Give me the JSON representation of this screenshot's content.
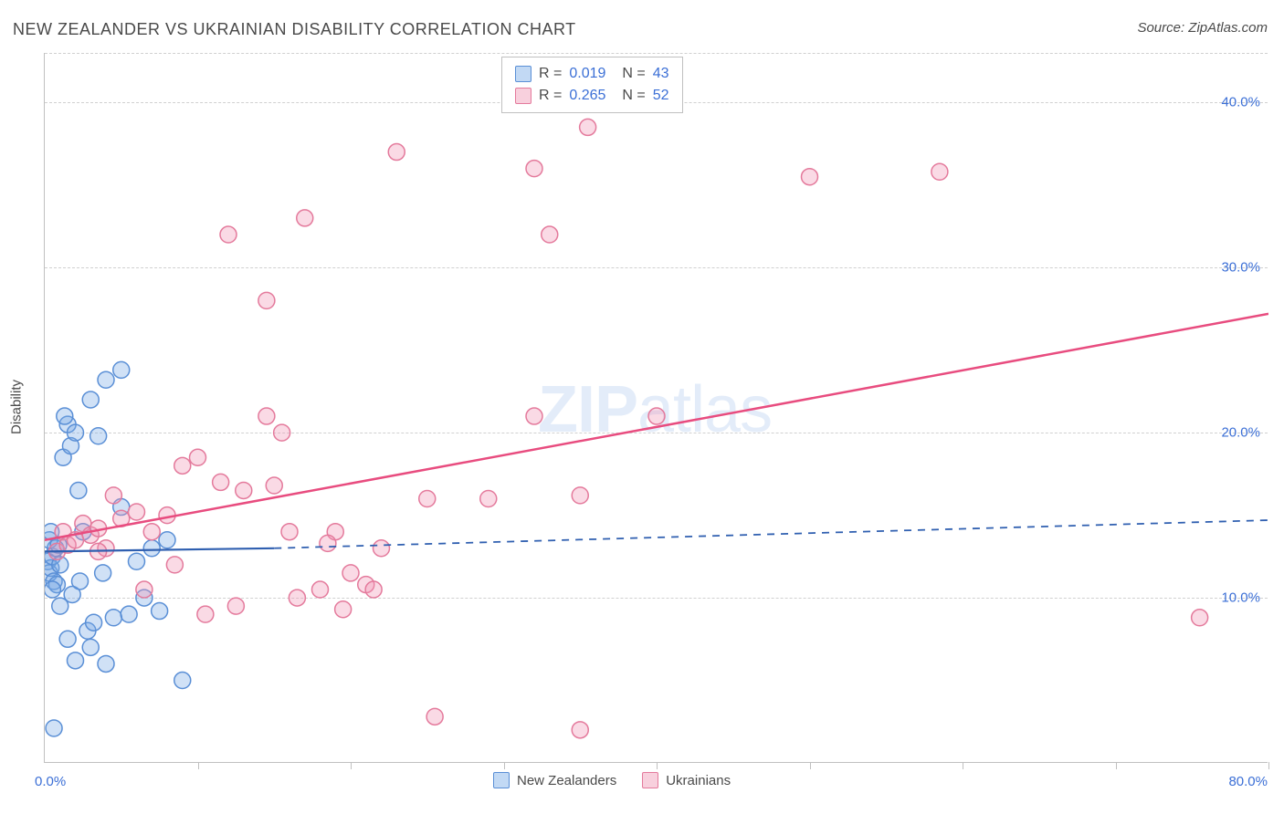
{
  "title": "NEW ZEALANDER VS UKRAINIAN DISABILITY CORRELATION CHART",
  "source": "Source: ZipAtlas.com",
  "y_axis_label": "Disability",
  "watermark_bold": "ZIP",
  "watermark_rest": "atlas",
  "chart": {
    "type": "scatter",
    "xlim": [
      0,
      80
    ],
    "ylim": [
      0,
      43
    ],
    "x_ticks": [
      0,
      10,
      20,
      30,
      40,
      50,
      60,
      70,
      80
    ],
    "x_tick_labels": {
      "0": "0.0%",
      "80": "80.0%"
    },
    "y_gridlines": [
      10,
      20,
      30,
      40,
      43
    ],
    "y_tick_labels": {
      "10": "10.0%",
      "20": "20.0%",
      "30": "30.0%",
      "40": "40.0%"
    },
    "background_color": "#ffffff",
    "grid_color": "#d0d0d0",
    "axis_color": "#c0c0c0",
    "tick_label_color": "#3b6fd6",
    "marker_radius": 9,
    "marker_stroke_width": 1.5,
    "series": [
      {
        "name": "New Zealanders",
        "fill": "rgba(120,170,230,0.35)",
        "stroke": "#5a8fd6",
        "trend": {
          "x1": 0,
          "y1": 12.8,
          "x2": 15,
          "y2": 13.0,
          "x2_dash": 80,
          "y2_dash": 14.7,
          "color": "#2f5fb0",
          "width": 2.2
        },
        "points": [
          [
            0.2,
            12.2
          ],
          [
            0.3,
            11.5
          ],
          [
            0.4,
            11.8
          ],
          [
            0.5,
            12.5
          ],
          [
            0.6,
            11.0
          ],
          [
            0.7,
            13.0
          ],
          [
            0.8,
            10.8
          ],
          [
            0.5,
            10.5
          ],
          [
            1.0,
            12.0
          ],
          [
            1.2,
            18.5
          ],
          [
            1.5,
            20.5
          ],
          [
            1.3,
            21.0
          ],
          [
            1.7,
            19.2
          ],
          [
            2.0,
            20.0
          ],
          [
            2.2,
            16.5
          ],
          [
            2.5,
            14.0
          ],
          [
            3.0,
            22.0
          ],
          [
            3.5,
            19.8
          ],
          [
            4.0,
            23.2
          ],
          [
            5.0,
            23.8
          ],
          [
            6.0,
            12.2
          ],
          [
            6.5,
            10.0
          ],
          [
            7.0,
            13.0
          ],
          [
            8.0,
            13.5
          ],
          [
            2.8,
            8.0
          ],
          [
            3.2,
            8.5
          ],
          [
            4.5,
            8.8
          ],
          [
            5.5,
            9.0
          ],
          [
            3.0,
            7.0
          ],
          [
            2.0,
            6.2
          ],
          [
            1.5,
            7.5
          ],
          [
            4.0,
            6.0
          ],
          [
            0.6,
            2.1
          ],
          [
            1.0,
            9.5
          ],
          [
            1.8,
            10.2
          ],
          [
            2.3,
            11.0
          ],
          [
            3.8,
            11.5
          ],
          [
            5.0,
            15.5
          ],
          [
            7.5,
            9.2
          ],
          [
            9.0,
            5.0
          ],
          [
            0.3,
            13.5
          ],
          [
            0.4,
            14.0
          ],
          [
            0.9,
            13.2
          ]
        ]
      },
      {
        "name": "Ukrainians",
        "fill": "rgba(240,150,180,0.35)",
        "stroke": "#e47a9c",
        "trend": {
          "x1": 0,
          "y1": 13.5,
          "x2": 80,
          "y2": 27.2,
          "color": "#e84c7f",
          "width": 2.5
        },
        "points": [
          [
            0.8,
            12.8
          ],
          [
            1.2,
            14.0
          ],
          [
            1.5,
            13.2
          ],
          [
            2.0,
            13.5
          ],
          [
            2.5,
            14.5
          ],
          [
            3.0,
            13.8
          ],
          [
            3.5,
            14.2
          ],
          [
            4.0,
            13.0
          ],
          [
            5.0,
            14.8
          ],
          [
            6.0,
            15.2
          ],
          [
            7.0,
            14.0
          ],
          [
            8.0,
            15.0
          ],
          [
            9.0,
            18.0
          ],
          [
            10.0,
            18.5
          ],
          [
            11.5,
            17.0
          ],
          [
            13.0,
            16.5
          ],
          [
            14.5,
            21.0
          ],
          [
            15.0,
            16.8
          ],
          [
            15.5,
            20.0
          ],
          [
            16.0,
            14.0
          ],
          [
            16.5,
            10.0
          ],
          [
            18.0,
            10.5
          ],
          [
            19.0,
            14.0
          ],
          [
            20.0,
            11.5
          ],
          [
            21.0,
            10.8
          ],
          [
            21.5,
            10.5
          ],
          [
            25.0,
            16.0
          ],
          [
            29.0,
            16.0
          ],
          [
            32.0,
            21.0
          ],
          [
            35.0,
            16.2
          ],
          [
            40.0,
            21.0
          ],
          [
            12.0,
            32.0
          ],
          [
            17.0,
            33.0
          ],
          [
            14.5,
            28.0
          ],
          [
            33.0,
            32.0
          ],
          [
            35.5,
            38.5
          ],
          [
            32.0,
            36.0
          ],
          [
            23.0,
            37.0
          ],
          [
            50.0,
            35.5
          ],
          [
            58.5,
            35.8
          ],
          [
            25.5,
            2.8
          ],
          [
            35.0,
            2.0
          ],
          [
            10.5,
            9.0
          ],
          [
            12.5,
            9.5
          ],
          [
            19.5,
            9.3
          ],
          [
            6.5,
            10.5
          ],
          [
            8.5,
            12.0
          ],
          [
            3.5,
            12.8
          ],
          [
            4.5,
            16.2
          ],
          [
            75.5,
            8.8
          ],
          [
            18.5,
            13.3
          ],
          [
            22.0,
            13.0
          ]
        ]
      }
    ]
  },
  "stats_legend": {
    "rows": [
      {
        "swatch_fill": "rgba(120,170,230,0.45)",
        "swatch_stroke": "#5a8fd6",
        "r_label": "R =",
        "r_val": "0.019",
        "n_label": "N =",
        "n_val": "43"
      },
      {
        "swatch_fill": "rgba(240,150,180,0.45)",
        "swatch_stroke": "#e47a9c",
        "r_label": "R =",
        "r_val": "0.265",
        "n_label": "N =",
        "n_val": "52"
      }
    ]
  },
  "bottom_legend": {
    "items": [
      {
        "label": "New Zealanders",
        "fill": "rgba(120,170,230,0.45)",
        "stroke": "#5a8fd6"
      },
      {
        "label": "Ukrainians",
        "fill": "rgba(240,150,180,0.45)",
        "stroke": "#e47a9c"
      }
    ]
  }
}
